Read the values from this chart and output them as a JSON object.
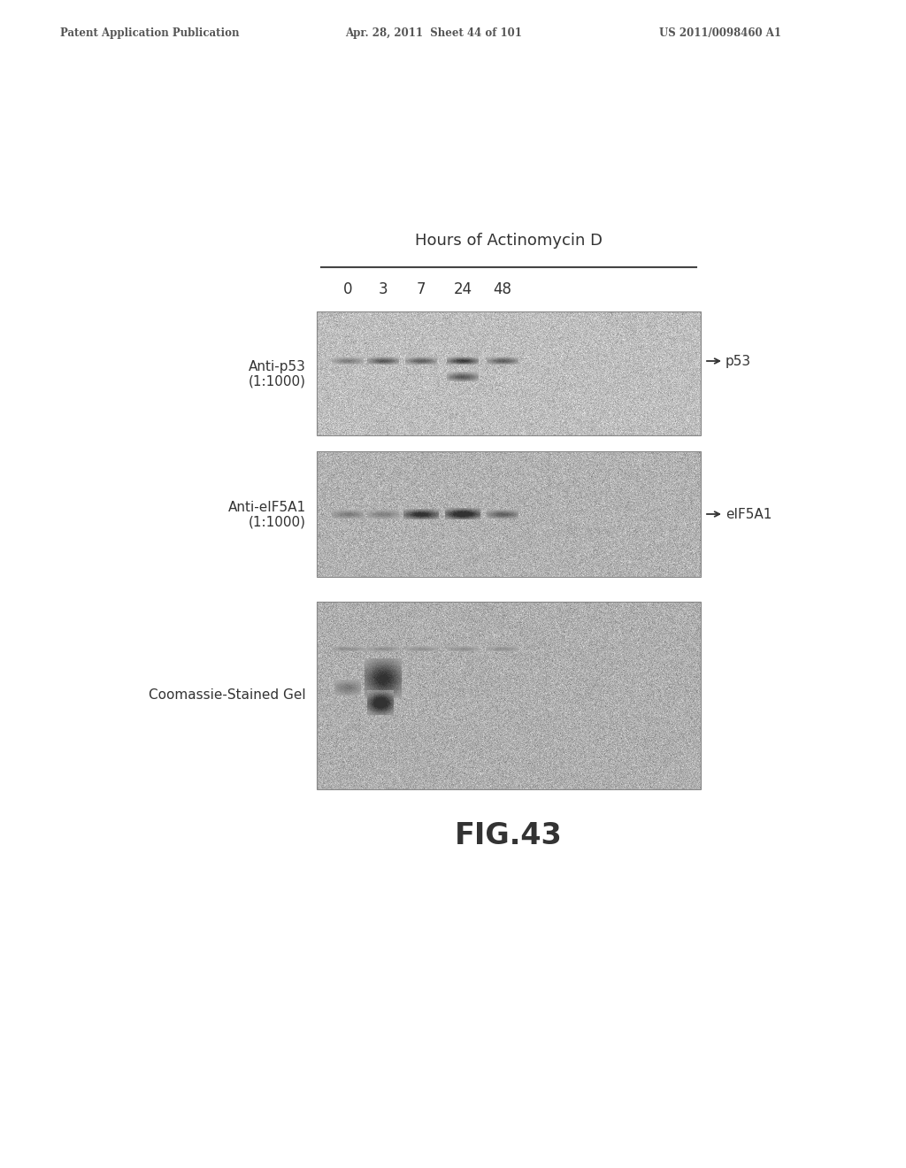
{
  "header_left": "Patent Application Publication",
  "header_mid": "Apr. 28, 2011  Sheet 44 of 101",
  "header_right": "US 2011/0098460 A1",
  "title": "Hours of Actinomycin D",
  "time_points": [
    "0",
    "3",
    "7",
    "24",
    "48"
  ],
  "panel1_label_line1": "Anti-p53",
  "panel1_label_line2": "(1:1000)",
  "panel1_arrow_label": "p53",
  "panel2_label_line1": "Anti-eIF5A1",
  "panel2_label_line2": "(1:1000)",
  "panel2_arrow_label": "eIF5A1",
  "panel3_label": "Coomassie-Stained Gel",
  "fig_label": "FIG.43",
  "bg_color": "#ffffff",
  "header_color": "#555555",
  "text_color": "#444444"
}
